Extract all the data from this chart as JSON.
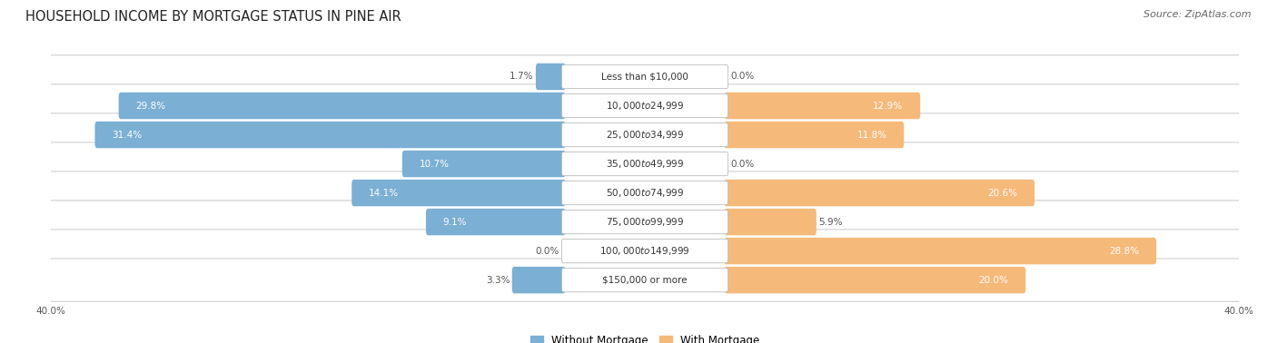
{
  "title": "HOUSEHOLD INCOME BY MORTGAGE STATUS IN PINE AIR",
  "source": "Source: ZipAtlas.com",
  "categories": [
    "Less than $10,000",
    "$10,000 to $24,999",
    "$25,000 to $34,999",
    "$35,000 to $49,999",
    "$50,000 to $74,999",
    "$75,000 to $99,999",
    "$100,000 to $149,999",
    "$150,000 or more"
  ],
  "without_mortgage": [
    1.7,
    29.8,
    31.4,
    10.7,
    14.1,
    9.1,
    0.0,
    3.3
  ],
  "with_mortgage": [
    0.0,
    12.9,
    11.8,
    0.0,
    20.6,
    5.9,
    28.8,
    20.0
  ],
  "without_mortgage_color": "#7bafd4",
  "with_mortgage_color": "#f5b97a",
  "axis_limit": 40.0,
  "fig_bg_color": "#ffffff",
  "row_bg_color": "#f0f0f0",
  "row_bg_color_alt": "#ffffff",
  "legend_labels": [
    "Without Mortgage",
    "With Mortgage"
  ],
  "title_fontsize": 10.5,
  "source_fontsize": 8,
  "label_fontsize": 7.5,
  "value_fontsize": 7.5,
  "cat_fontsize": 7.5
}
